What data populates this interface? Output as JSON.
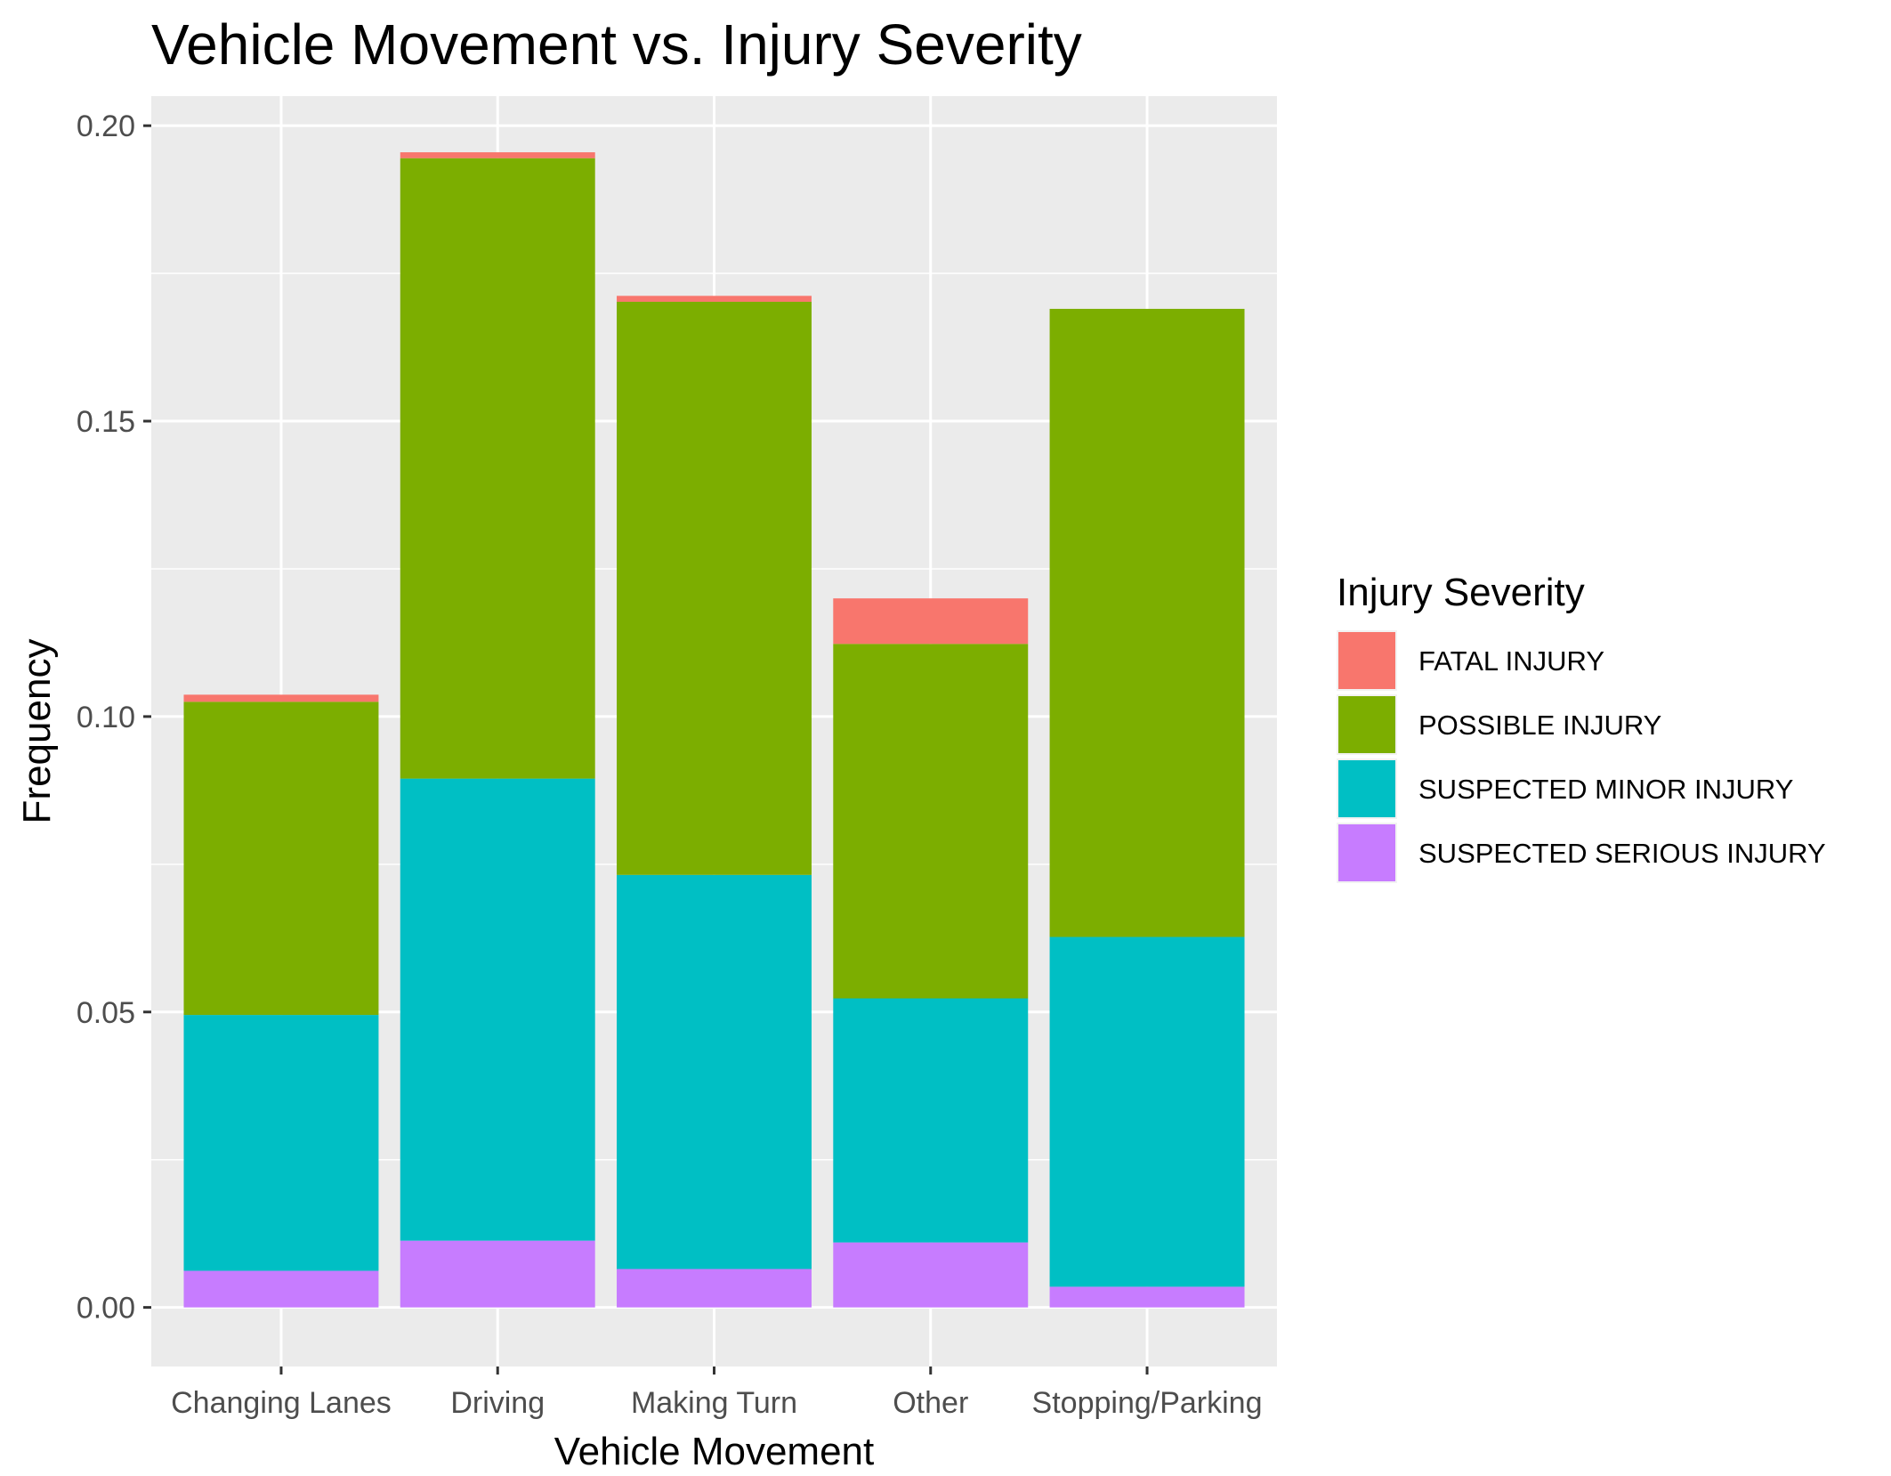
{
  "chart_data": {
    "type": "bar",
    "stacked": true,
    "title": "Vehicle Movement vs. Injury Severity",
    "xlabel": "Vehicle Movement",
    "ylabel": "Frequency",
    "ylim": [
      -0.01,
      0.205
    ],
    "yticks": [
      0.0,
      0.05,
      0.1,
      0.15,
      0.2
    ],
    "ytick_labels": [
      "0.00",
      "0.05",
      "0.10",
      "0.15",
      "0.20"
    ],
    "grid": true,
    "categories": [
      "Changing Lanes",
      "Driving",
      "Making Turn",
      "Other",
      "Stopping/Parking"
    ],
    "legend": {
      "title": "Injury Severity",
      "placement": "right"
    },
    "series": [
      {
        "name": "SUSPECTED SERIOUS INJURY",
        "color": "#C77CFF",
        "values": [
          0.0062,
          0.0113,
          0.0065,
          0.011,
          0.0035
        ]
      },
      {
        "name": "SUSPECTED MINOR INJURY",
        "color": "#00BFC4",
        "values": [
          0.0433,
          0.0782,
          0.0667,
          0.0413,
          0.0592
        ]
      },
      {
        "name": "POSSIBLE INJURY",
        "color": "#7CAE00",
        "values": [
          0.053,
          0.105,
          0.097,
          0.06,
          0.1063
        ]
      },
      {
        "name": "FATAL INJURY",
        "color": "#F8766D",
        "values": [
          0.0012,
          0.001,
          0.001,
          0.0077,
          0.0
        ]
      }
    ]
  }
}
